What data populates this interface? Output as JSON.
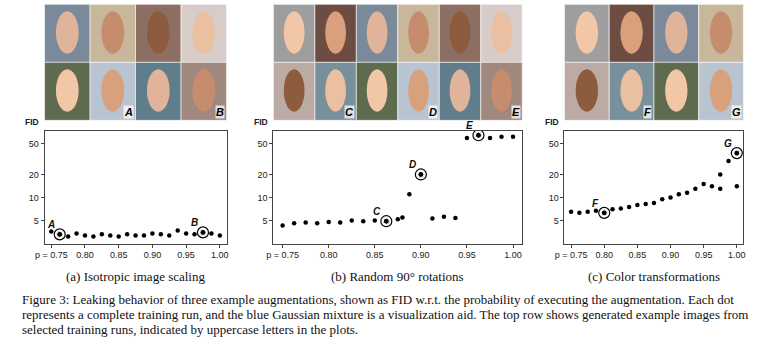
{
  "chart_data": [
    {
      "type": "scatter",
      "subtitle": "(a) Isotropic image scaling",
      "ylabel": "FID",
      "color": "#000000",
      "marker": "circle",
      "log": "y",
      "grid": false,
      "x": [
        0.75,
        0.7625,
        0.775,
        0.7875,
        0.8,
        0.8125,
        0.825,
        0.8375,
        0.85,
        0.8625,
        0.875,
        0.8875,
        0.9,
        0.9125,
        0.925,
        0.9375,
        0.95,
        0.9625,
        0.975,
        0.9875,
        1.0
      ],
      "values": [
        3.6,
        3.3,
        3.1,
        3.4,
        3.2,
        3.1,
        3.3,
        3.2,
        3.1,
        3.3,
        3.2,
        3.2,
        3.4,
        3.3,
        3.2,
        3.7,
        3.4,
        3.3,
        3.5,
        3.4,
        3.2
      ],
      "highlights": [
        {
          "label": "A",
          "x": 0.7625,
          "y": 3.3
        },
        {
          "label": "B",
          "x": 0.975,
          "y": 3.5
        }
      ],
      "xlim": [
        0.74,
        1.01
      ],
      "xticks": [
        {
          "value": 0.75,
          "label": "p = 0.75"
        },
        {
          "value": 0.8,
          "label": "0.80"
        },
        {
          "value": 0.85,
          "label": "0.85"
        },
        {
          "value": 0.9,
          "label": "0.90"
        },
        {
          "value": 0.95,
          "label": "0.95"
        },
        {
          "value": 1.0,
          "label": "1.00"
        }
      ],
      "ylim": [
        2.5,
        75
      ],
      "yticks": [
        5,
        10,
        20,
        50
      ]
    },
    {
      "type": "scatter",
      "subtitle": "(b) Random 90° rotations",
      "ylabel": "FID",
      "color": "#000000",
      "marker": "circle",
      "log": "y",
      "grid": false,
      "x": [
        0.75,
        0.7625,
        0.775,
        0.7875,
        0.8,
        0.8125,
        0.825,
        0.8375,
        0.85,
        0.8625,
        0.875,
        0.88,
        0.8875,
        0.9,
        0.9125,
        0.925,
        0.9375,
        0.95,
        0.9625,
        0.975,
        0.9875,
        1.0
      ],
      "values": [
        4.3,
        4.6,
        4.7,
        4.6,
        4.8,
        4.7,
        5.0,
        4.9,
        5.0,
        4.9,
        5.2,
        5.5,
        11,
        20,
        5.3,
        5.6,
        5.4,
        60,
        65,
        60,
        62,
        62
      ],
      "highlights": [
        {
          "label": "C",
          "x": 0.8625,
          "y": 4.9
        },
        {
          "label": "D",
          "x": 0.9,
          "y": 20
        },
        {
          "label": "E",
          "x": 0.9625,
          "y": 65
        }
      ],
      "xlim": [
        0.74,
        1.01
      ],
      "xticks": [
        {
          "value": 0.75,
          "label": "p = 0.75"
        },
        {
          "value": 0.8,
          "label": "0.80"
        },
        {
          "value": 0.85,
          "label": "0.85"
        },
        {
          "value": 0.9,
          "label": "0.90"
        },
        {
          "value": 0.95,
          "label": "0.95"
        },
        {
          "value": 1.0,
          "label": "1.00"
        }
      ],
      "ylim": [
        2.5,
        75
      ],
      "yticks": [
        5,
        10,
        20,
        50
      ]
    },
    {
      "type": "scatter",
      "subtitle": "(c) Color transformations",
      "ylabel": "FID",
      "color": "#000000",
      "marker": "circle",
      "log": "y",
      "grid": false,
      "x": [
        0.75,
        0.7625,
        0.775,
        0.7875,
        0.8,
        0.8125,
        0.825,
        0.8375,
        0.85,
        0.8625,
        0.875,
        0.8875,
        0.9,
        0.9125,
        0.925,
        0.9375,
        0.95,
        0.9625,
        0.975,
        0.9875,
        1.0,
        0.975,
        1.0
      ],
      "values": [
        6.5,
        6.3,
        6.5,
        6.7,
        6.3,
        7.0,
        7.2,
        7.5,
        8.0,
        8.2,
        8.5,
        9.5,
        10,
        11,
        11.5,
        13,
        15,
        14,
        20,
        30,
        38,
        13,
        14
      ],
      "highlights": [
        {
          "label": "F",
          "x": 0.8,
          "y": 6.3
        },
        {
          "label": "G",
          "x": 1.0,
          "y": 38
        }
      ],
      "xlim": [
        0.74,
        1.01
      ],
      "xticks": [
        {
          "value": 0.75,
          "label": "p = 0.75"
        },
        {
          "value": 0.8,
          "label": "0.80"
        },
        {
          "value": 0.85,
          "label": "0.85"
        },
        {
          "value": 0.9,
          "label": "0.90"
        },
        {
          "value": 0.95,
          "label": "0.95"
        },
        {
          "value": 1.0,
          "label": "1.00"
        }
      ],
      "ylim": [
        2.5,
        75
      ],
      "yticks": [
        5,
        10,
        20,
        50
      ]
    }
  ],
  "caption": "Figure 3: Leaking behavior of three example augmentations, shown as FID w.r.t. the probability of executing the augmentation. Each dot represents a complete training run, and the blue Gaussian mixture is a visualization aid. The top row shows generated example images from selected training runs, indicated by uppercase letters in the plots."
}
